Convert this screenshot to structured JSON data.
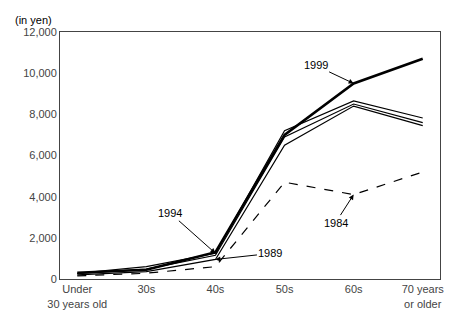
{
  "chart_data": {
    "type": "line",
    "ylabel": "(in yen)",
    "categories": [
      "Under\n30 years old",
      "30s",
      "40s",
      "50s",
      "60s",
      "70 years\nor older"
    ],
    "series": [
      {
        "color": "#000000",
        "line_style": "solid",
        "values": [
          300,
          450,
          1300,
          7000,
          9500,
          10700
        ]
      },
      {
        "color": "#000000",
        "line_style": "solid",
        "values": [
          280,
          600,
          1250,
          7200,
          8650,
          7820
        ]
      },
      {
        "color": "#000000",
        "line_style": "solid",
        "values": [
          260,
          480,
          1150,
          6900,
          8500,
          7600
        ]
      },
      {
        "color": "#000000",
        "line_style": "solid",
        "values": [
          200,
          360,
          950,
          6500,
          8400,
          7450
        ]
      },
      {
        "color": "#000000",
        "line_style": "dashed",
        "values": [
          150,
          280,
          600,
          4700,
          4100,
          5200
        ]
      }
    ],
    "ylim": [
      0,
      12000
    ],
    "yticks": [
      0,
      {
        "value": 2000,
        "label": "2,000"
      },
      {
        "value": 4000,
        "label": "4,000"
      },
      {
        "value": 6000,
        "label": "6,000"
      },
      {
        "value": 8000,
        "label": "8,000"
      },
      {
        "value": 10000,
        "label": "10,000"
      },
      {
        "value": 12000,
        "label": "12,000"
      }
    ],
    "grid": false,
    "annotations": [
      {
        "text": "1999",
        "x": "60s",
        "y": 9500
      },
      {
        "text": "1994",
        "x": "40s",
        "y": 1250
      },
      {
        "text": "1989",
        "x": "40s",
        "y": 950
      },
      {
        "text": "1984",
        "x": "60s",
        "y": 4100
      }
    ]
  }
}
